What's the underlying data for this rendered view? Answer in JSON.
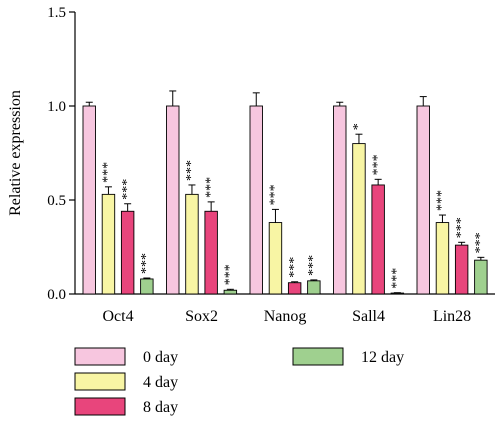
{
  "chart_data": {
    "type": "bar",
    "title": "",
    "xlabel": "",
    "ylabel": "Relative expression",
    "ylim": [
      0,
      1.5
    ],
    "yticks": [
      "0.0",
      "0.5",
      "1.0",
      "1.5"
    ],
    "categories": [
      "Oct4",
      "Sox2",
      "Nanog",
      "Sall4",
      "Lin28"
    ],
    "series": [
      {
        "name": "0 day",
        "color": "#f7c6df",
        "values": [
          1.0,
          1.0,
          1.0,
          1.0,
          1.0
        ],
        "errors": [
          0.02,
          0.08,
          0.07,
          0.02,
          0.05
        ],
        "significance": [
          "",
          "",
          "",
          "",
          ""
        ]
      },
      {
        "name": "4 day",
        "color": "#f8f5a4",
        "values": [
          0.53,
          0.53,
          0.38,
          0.8,
          0.38
        ],
        "errors": [
          0.04,
          0.05,
          0.07,
          0.05,
          0.04
        ],
        "significance": [
          "***",
          "***",
          "***",
          "*",
          "***"
        ]
      },
      {
        "name": "8 day",
        "color": "#e8457c",
        "values": [
          0.44,
          0.44,
          0.06,
          0.58,
          0.26
        ],
        "errors": [
          0.04,
          0.05,
          0.005,
          0.03,
          0.015
        ],
        "significance": [
          "***",
          "***",
          "***",
          "***",
          "***"
        ]
      },
      {
        "name": "12 day",
        "color": "#9fd08f",
        "values": [
          0.08,
          0.02,
          0.07,
          0.005,
          0.18
        ],
        "errors": [
          0.005,
          0.005,
          0.005,
          0.002,
          0.015
        ],
        "significance": [
          "***",
          "***",
          "***",
          "***",
          "***"
        ]
      }
    ],
    "legend_position": "bottom",
    "grid": false
  }
}
